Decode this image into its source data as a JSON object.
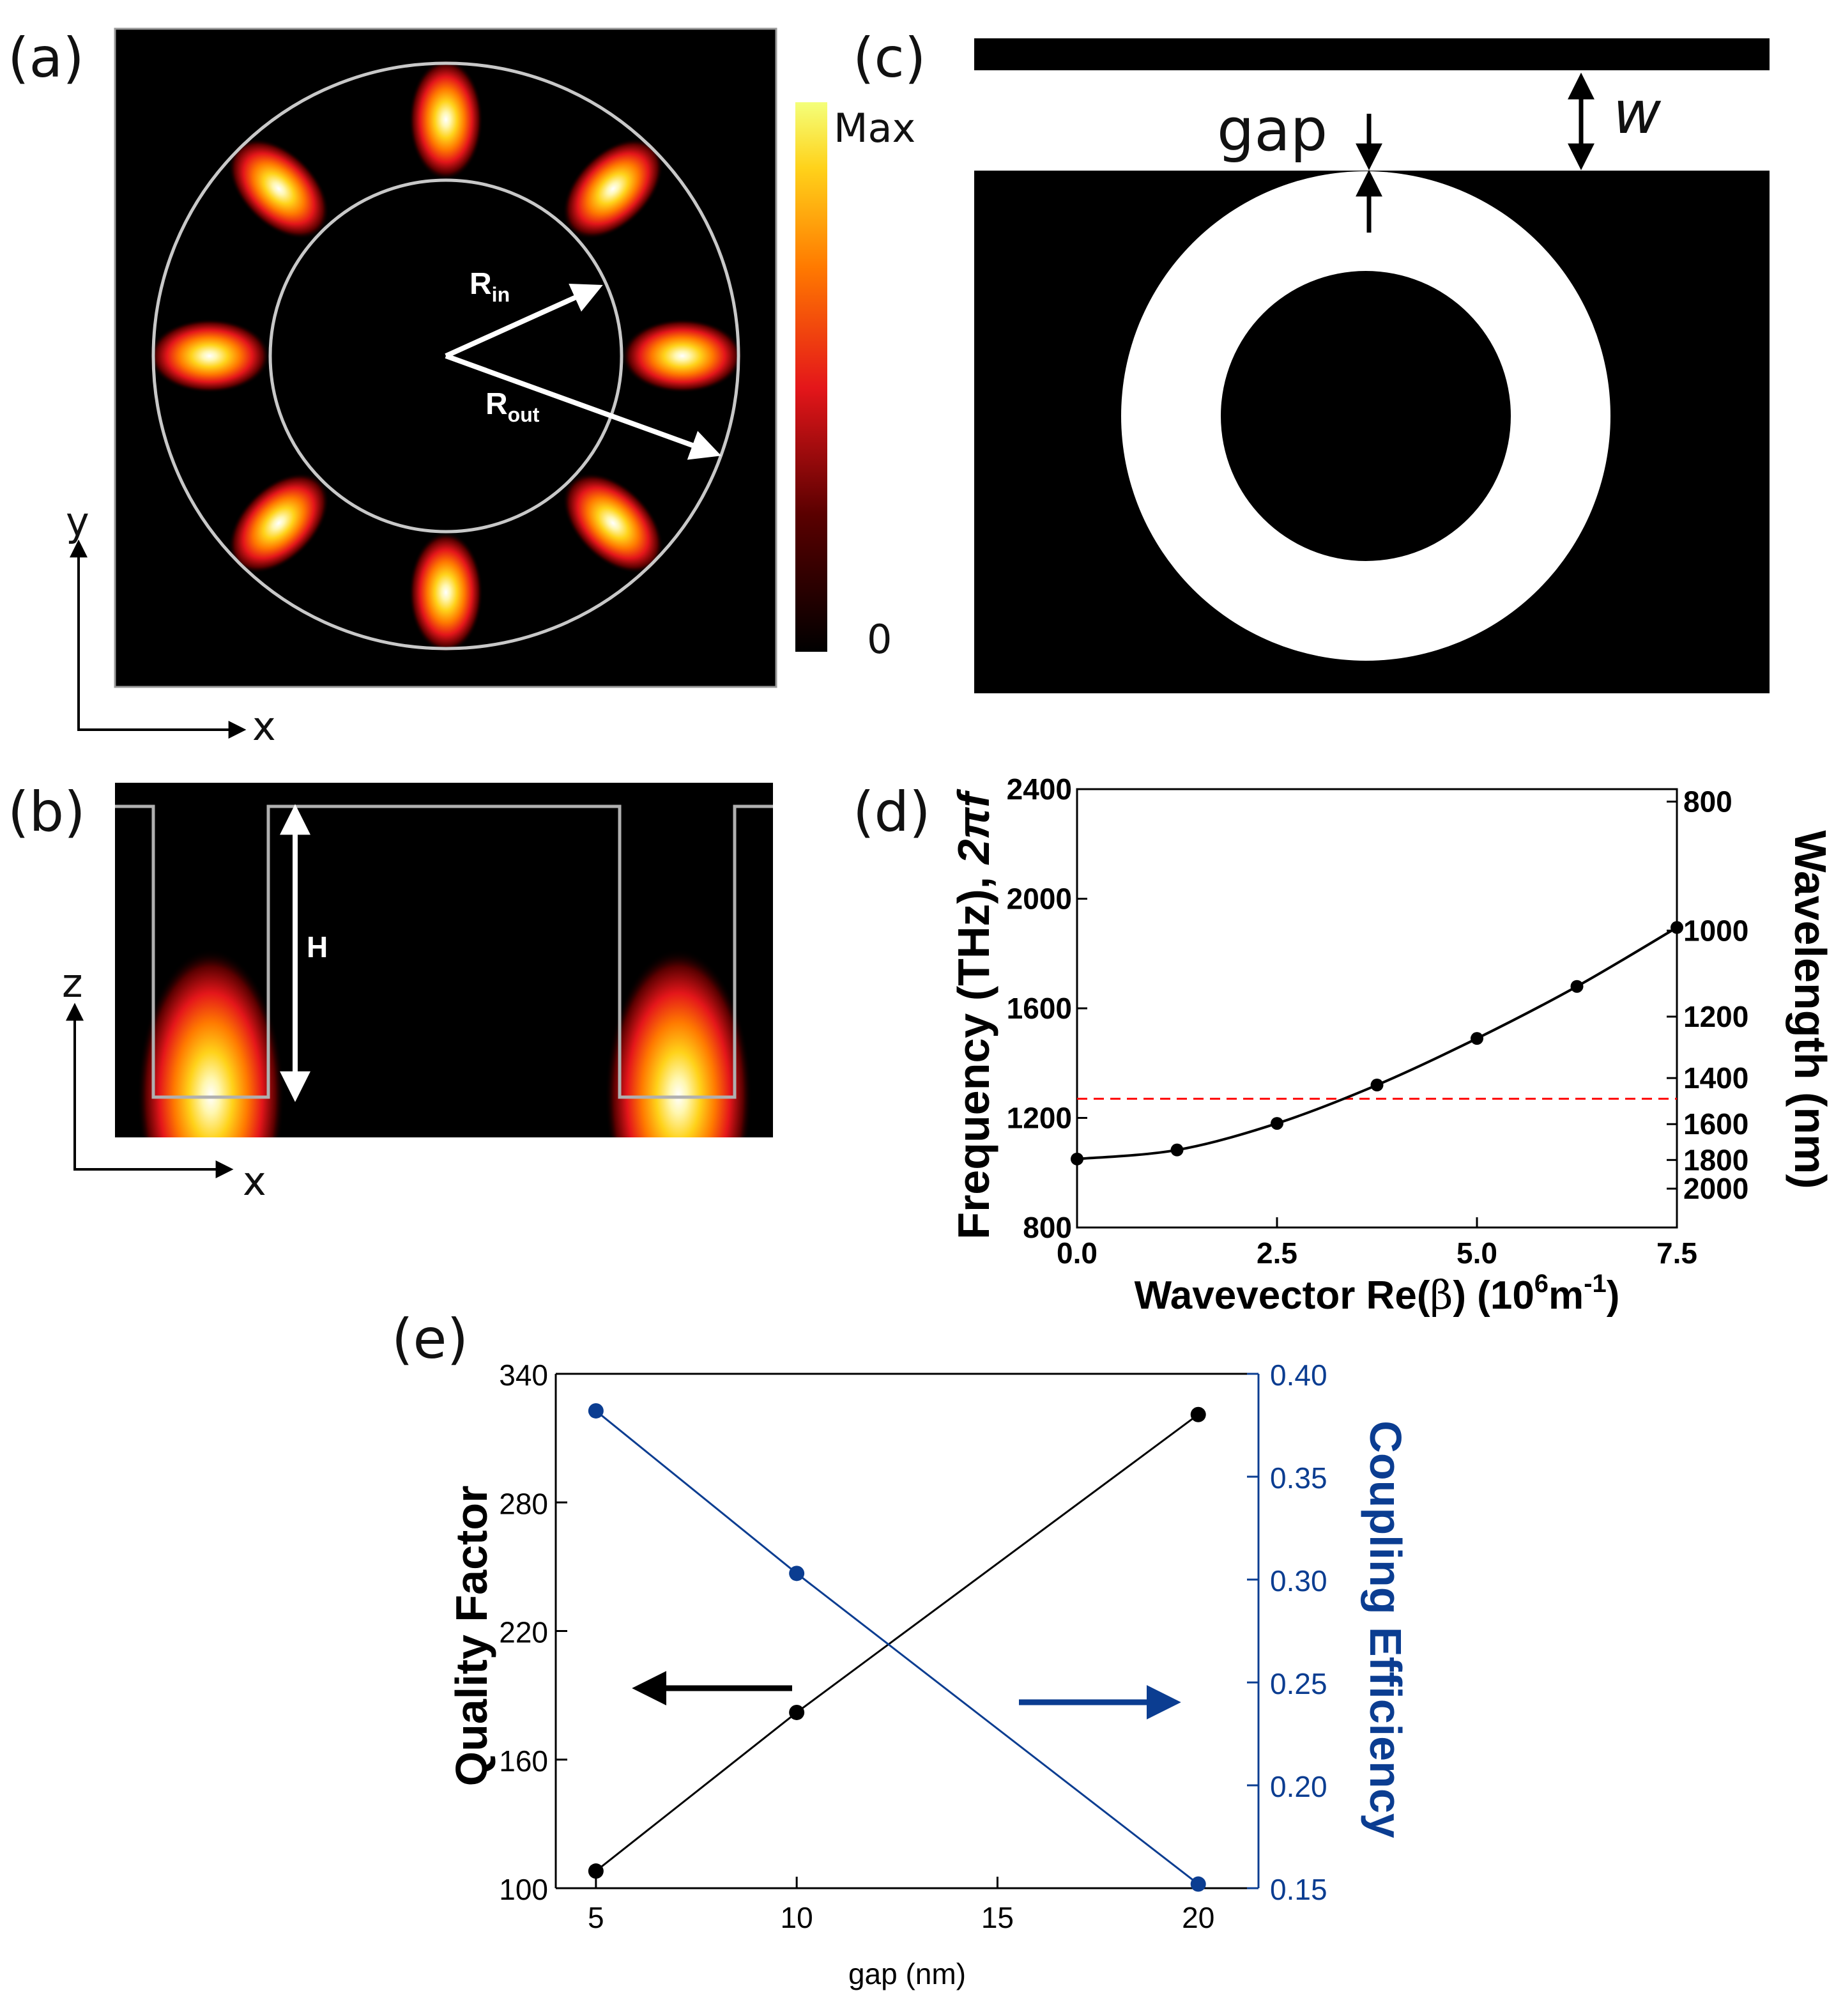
{
  "panels": {
    "a": {
      "label": "(a)",
      "r_in": "R",
      "r_in_sub": "in",
      "r_out": "R",
      "r_out_sub": "out",
      "axis_y": "y",
      "axis_x": "x",
      "colorbar_max": "Max",
      "colorbar_min": "0",
      "mode_lobes": 8
    },
    "b": {
      "label": "(b)",
      "h_label": "H",
      "axis_z": "z",
      "axis_x": "x"
    },
    "c": {
      "label": "(c)",
      "gap_label": "gap",
      "w_label": "w"
    }
  },
  "chart_data": [
    {
      "id": "d",
      "label": "(d)",
      "type": "line",
      "x": [
        0.0,
        1.25,
        2.5,
        3.75,
        5.0,
        6.25,
        7.5
      ],
      "series": [
        {
          "name": "dispersion",
          "color": "#000000",
          "values": [
            1050,
            1083,
            1180,
            1320,
            1490,
            1680,
            1895
          ]
        }
      ],
      "reference_line": {
        "y": 1270,
        "color": "#ff0000",
        "style": "dashed"
      },
      "xlim": [
        0,
        7.5
      ],
      "ylim": [
        800,
        2400
      ],
      "xticks": [
        "0.0",
        "2.5",
        "5.0",
        "7.5"
      ],
      "yticks": [
        "800",
        "1200",
        "1600",
        "2000",
        "2400"
      ],
      "y2_ticks": [
        {
          "label": "800",
          "value": 800
        },
        {
          "label": "1000",
          "value": 1000
        },
        {
          "label": "1200",
          "value": 1200
        },
        {
          "label": "1400",
          "value": 1400
        },
        {
          "label": "1600",
          "value": 1600
        },
        {
          "label": "1800",
          "value": 1800
        },
        {
          "label": "2000",
          "value": 2000
        }
      ],
      "ylabel": "Frequency (THz), 2πf",
      "ylabel_plain": "Frequency (THz), ",
      "ylabel_math": "2πf",
      "y2label": "Wavelength (nm)",
      "xlabel": "Wavevector Re(β) (10⁶m⁻¹)",
      "xlabel_parts": {
        "a": "Wavevector Re(",
        "beta": "β",
        "b": ") (10",
        "exp1": "6",
        "c": "m",
        "exp2": "-1",
        "d": ")"
      },
      "grid": false
    },
    {
      "id": "e",
      "label": "(e)",
      "type": "line",
      "x": [
        5,
        10,
        20
      ],
      "series": [
        {
          "name": "Quality Factor",
          "axis": "left",
          "color": "#000000",
          "values": [
            108,
            182,
            321
          ]
        },
        {
          "name": "Coupling Efficiency",
          "axis": "right",
          "color": "#0b3d91",
          "values": [
            0.382,
            0.303,
            0.152
          ]
        }
      ],
      "xlim": [
        4,
        21.5
      ],
      "ylim": [
        100,
        340
      ],
      "y2lim": [
        0.15,
        0.4
      ],
      "xticks": [
        "5",
        "10",
        "15",
        "20"
      ],
      "yticks": [
        "100",
        "160",
        "220",
        "280",
        "340"
      ],
      "y2ticks": [
        "0.15",
        "0.20",
        "0.25",
        "0.30",
        "0.35",
        "0.40"
      ],
      "xlabel": "gap (nm)",
      "ylabel": "Quality Factor",
      "y2label": "Coupling Efficiency",
      "grid": false
    }
  ]
}
